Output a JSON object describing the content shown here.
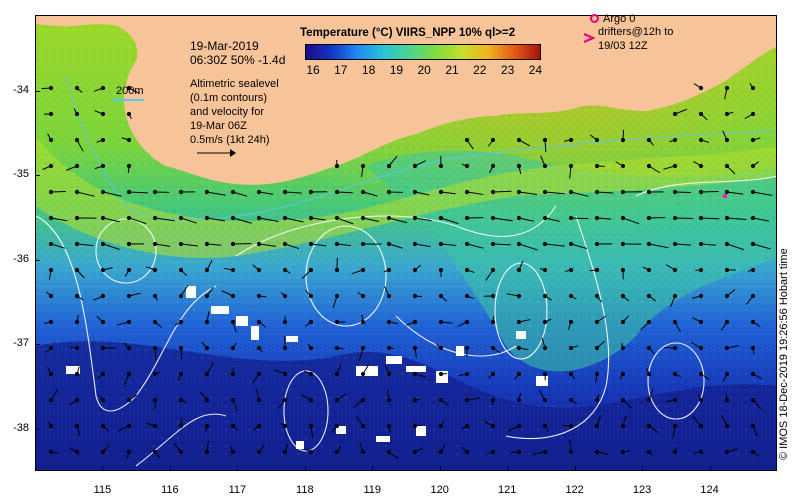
{
  "map": {
    "date_line1": "19-Mar-2019",
    "date_line2": "06:30Z  50% -1.4d",
    "sst_title": "Temperature (°C) VIIRS_NPP 10% ql>=2",
    "colorbar_ticks": [
      "16",
      "17",
      "18",
      "19",
      "20",
      "21",
      "22",
      "23",
      "24"
    ],
    "colorbar_colors": [
      "#1c0b8a",
      "#1536c8",
      "#1f8bf0",
      "#29c4d8",
      "#4ed48a",
      "#7edc3c",
      "#c7e02b",
      "#f2b21e",
      "#e65a14",
      "#a8140f"
    ],
    "bathy_label": "200m",
    "altimetry_text": [
      "Altimetric sealevel",
      "(0.1m contours)",
      "and velocity for",
      "19-Mar 06Z",
      "0.5m/s (1kt 24h)"
    ],
    "argo_label": "Argo 0",
    "drifter_text": [
      "drifters@12h to",
      "19/03 12Z"
    ],
    "credit": "© IMOS 18-Dec-2019 19:26:56 Hobart time",
    "y_ticks": [
      "-34",
      "-35",
      "-36",
      "-37",
      "-38"
    ],
    "x_ticks": [
      "115",
      "116",
      "117",
      "118",
      "119",
      "120",
      "121",
      "122",
      "123",
      "124"
    ],
    "colors": {
      "land": "#f7c49a",
      "contour": "#ffffff",
      "argo": "#e6007e",
      "bathy": "#5fc6e8"
    },
    "lon_range": [
      114.0,
      125.0
    ],
    "lat_range": [
      -33.1,
      -38.5
    ]
  }
}
